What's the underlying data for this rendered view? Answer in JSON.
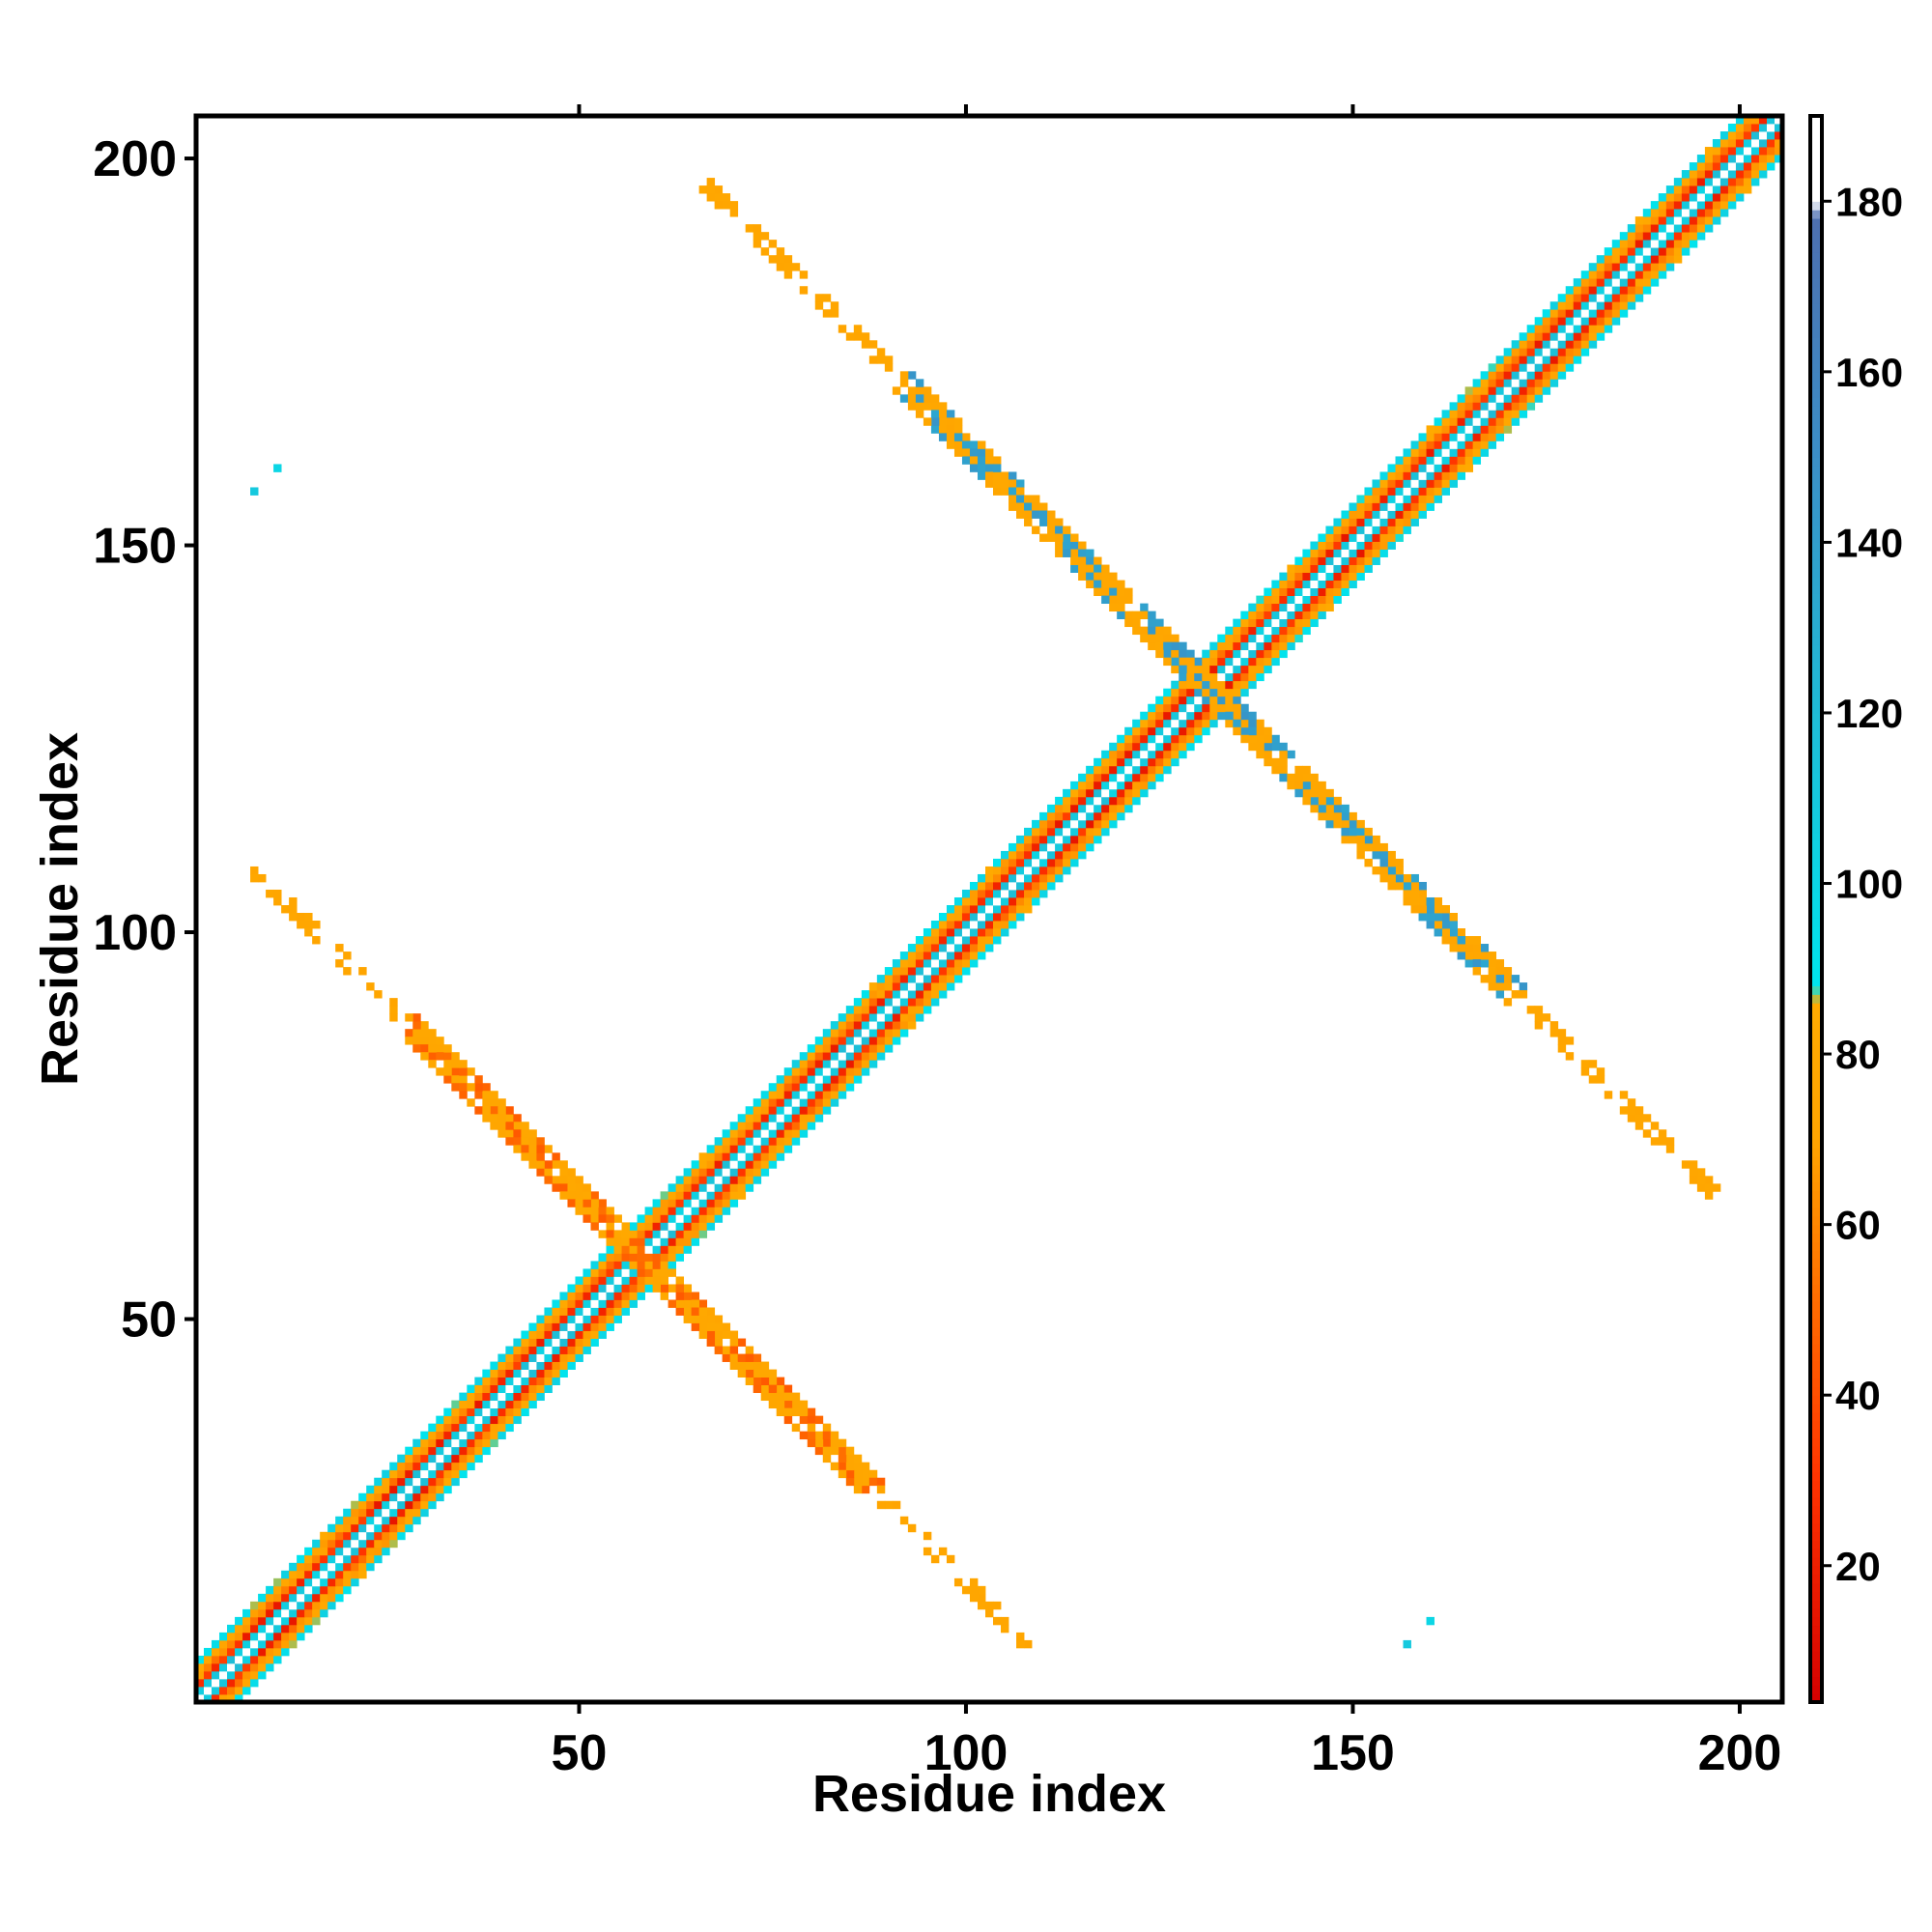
{
  "chart_data": {
    "type": "heatmap",
    "title": "",
    "xlabel": "Residue index",
    "ylabel": "Residue index",
    "xlim": [
      1,
      205
    ],
    "ylim": [
      1,
      205
    ],
    "x_ticks": [
      50,
      100,
      150,
      200
    ],
    "y_ticks": [
      50,
      100,
      150,
      200
    ],
    "colorbar": {
      "range": [
        4,
        190
      ],
      "ticks": [
        20,
        40,
        60,
        80,
        100,
        120,
        140,
        160,
        180
      ],
      "stops": [
        {
          "value": 4,
          "color": "#d40000"
        },
        {
          "value": 30,
          "color": "#ff3300"
        },
        {
          "value": 55,
          "color": "#ff7700"
        },
        {
          "value": 70,
          "color": "#ffa500"
        },
        {
          "value": 86,
          "color": "#ffaa00"
        },
        {
          "value": 88,
          "color": "#00e5ee"
        },
        {
          "value": 120,
          "color": "#1fbcd6"
        },
        {
          "value": 150,
          "color": "#3b8fc7"
        },
        {
          "value": 178,
          "color": "#4d6fb0"
        },
        {
          "value": 180,
          "color": "#ffffff"
        },
        {
          "value": 190,
          "color": "#ffffff"
        }
      ]
    },
    "main_diagonal": {
      "from": 1,
      "to": 205,
      "bands": [
        {
          "offset": 0,
          "value": 185
        },
        {
          "offset": 1,
          "value": 110
        },
        {
          "offset": 2,
          "value": 25
        },
        {
          "offset": 3,
          "value": 60
        },
        {
          "offset": 4,
          "value": 75
        },
        {
          "offset": 5,
          "value": 95
        }
      ]
    },
    "cross_contacts": [
      {
        "x_from": 8,
        "y_from": 108,
        "x_to": 108,
        "y_to": 8,
        "core_value": 75,
        "wide_range": [
          25,
          88
        ]
      },
      {
        "x_from": 67,
        "y_from": 196,
        "x_to": 196,
        "y_to": 67,
        "core_value": 75,
        "wide_range": [
          110,
          190
        ]
      }
    ],
    "isolated_contacts": [
      {
        "x": 8,
        "y": 157,
        "value": 110
      },
      {
        "x": 11,
        "y": 160,
        "value": 100
      },
      {
        "x": 157,
        "y": 8,
        "value": 110
      },
      {
        "x": 160,
        "y": 11,
        "value": 100
      }
    ]
  }
}
